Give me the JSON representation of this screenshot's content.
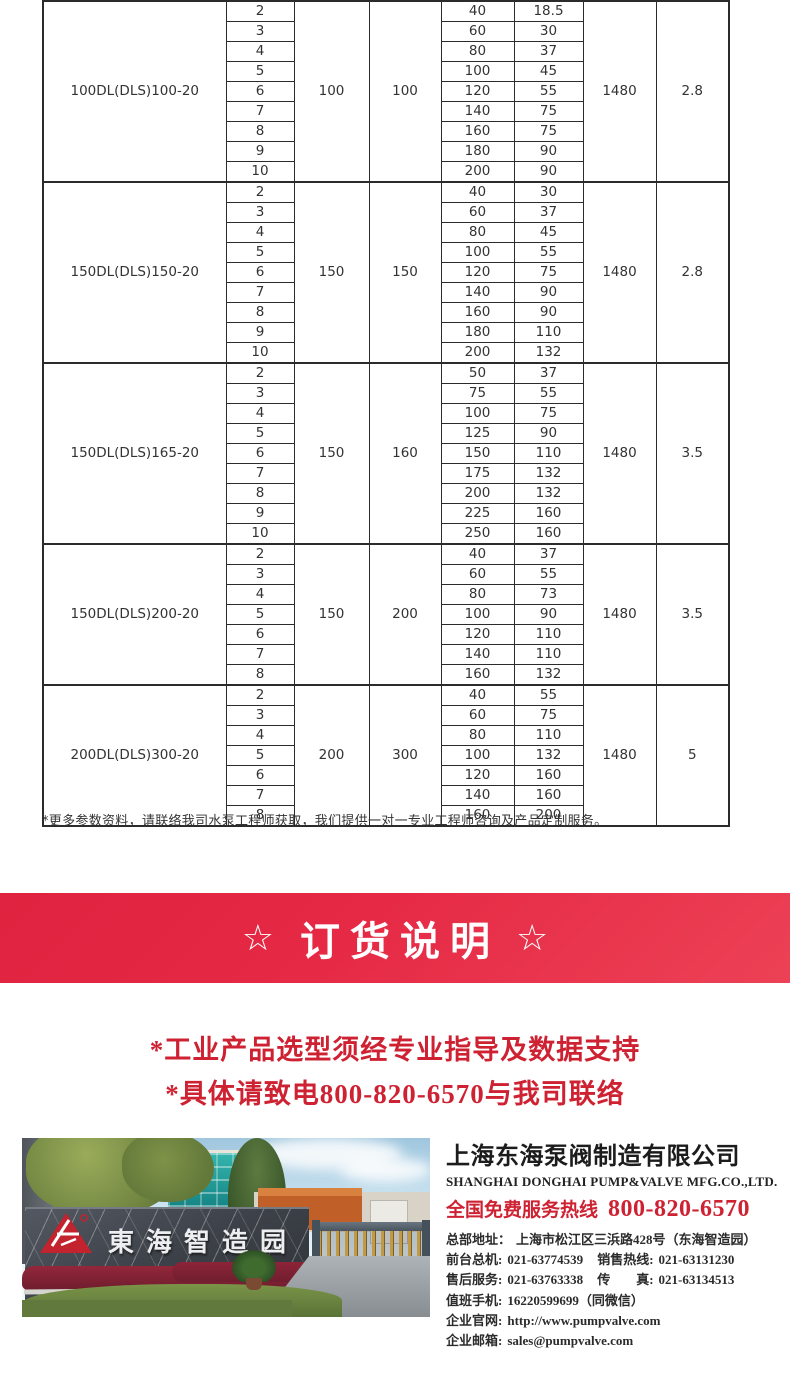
{
  "colors": {
    "banner_red": "#e62a45",
    "text_red": "#ce2233",
    "logo_red": "#c2232e",
    "table_line": "#2b2b2b"
  },
  "table": {
    "groups": [
      {
        "model": "100DL(DLS)100-20",
        "inlet": "100",
        "outlet": "100",
        "speed": "1480",
        "last_col": "2.8",
        "rows": [
          [
            "2",
            "40",
            "18.5"
          ],
          [
            "3",
            "60",
            "30"
          ],
          [
            "4",
            "80",
            "37"
          ],
          [
            "5",
            "100",
            "45"
          ],
          [
            "6",
            "120",
            "55"
          ],
          [
            "7",
            "140",
            "75"
          ],
          [
            "8",
            "160",
            "75"
          ],
          [
            "9",
            "180",
            "90"
          ],
          [
            "10",
            "200",
            "90"
          ]
        ]
      },
      {
        "model": "150DL(DLS)150-20",
        "inlet": "150",
        "outlet": "150",
        "speed": "1480",
        "last_col": "2.8",
        "rows": [
          [
            "2",
            "40",
            "30"
          ],
          [
            "3",
            "60",
            "37"
          ],
          [
            "4",
            "80",
            "45"
          ],
          [
            "5",
            "100",
            "55"
          ],
          [
            "6",
            "120",
            "75"
          ],
          [
            "7",
            "140",
            "90"
          ],
          [
            "8",
            "160",
            "90"
          ],
          [
            "9",
            "180",
            "110"
          ],
          [
            "10",
            "200",
            "132"
          ]
        ]
      },
      {
        "model": "150DL(DLS)165-20",
        "inlet": "150",
        "outlet": "160",
        "speed": "1480",
        "last_col": "3.5",
        "rows": [
          [
            "2",
            "50",
            "37"
          ],
          [
            "3",
            "75",
            "55"
          ],
          [
            "4",
            "100",
            "75"
          ],
          [
            "5",
            "125",
            "90"
          ],
          [
            "6",
            "150",
            "110"
          ],
          [
            "7",
            "175",
            "132"
          ],
          [
            "8",
            "200",
            "132"
          ],
          [
            "9",
            "225",
            "160"
          ],
          [
            "10",
            "250",
            "160"
          ]
        ]
      },
      {
        "model": "150DL(DLS)200-20",
        "inlet": "150",
        "outlet": "200",
        "speed": "1480",
        "last_col": "3.5",
        "rows": [
          [
            "2",
            "40",
            "37"
          ],
          [
            "3",
            "60",
            "55"
          ],
          [
            "4",
            "80",
            "73"
          ],
          [
            "5",
            "100",
            "90"
          ],
          [
            "6",
            "120",
            "110"
          ],
          [
            "7",
            "140",
            "110"
          ],
          [
            "8",
            "160",
            "132"
          ]
        ]
      },
      {
        "model": "200DL(DLS)300-20",
        "inlet": "200",
        "outlet": "300",
        "speed": "1480",
        "last_col": "5",
        "rows": [
          [
            "2",
            "40",
            "55"
          ],
          [
            "3",
            "60",
            "75"
          ],
          [
            "4",
            "80",
            "110"
          ],
          [
            "5",
            "100",
            "132"
          ],
          [
            "6",
            "120",
            "160"
          ],
          [
            "7",
            "140",
            "160"
          ],
          [
            "8",
            "160",
            "200"
          ]
        ]
      }
    ]
  },
  "footnote": "*更多参数资料，请联络我司水泵工程师获取，我们提供一对一专业工程师咨询及产品定制服务。",
  "banner": {
    "star": "☆",
    "title": "订货说明"
  },
  "notice": {
    "line1": "*工业产品选型须经专业指导及数据支持",
    "line2": "*具体请致电800-820-6570与我司联络"
  },
  "photo": {
    "sign_text": "東海智造园"
  },
  "company": {
    "name_cn": "上海东海泵阀制造有限公司",
    "name_en": "SHANGHAI DONGHAI PUMP&VALVE MFG.CO.,LTD.",
    "hotline_label": "全国免费服务热线",
    "hotline_number": "800-820-6570",
    "contact_lines": [
      [
        {
          "label": "总部地址：",
          "value": "上海市松江区三浜路428号（东海智造园）"
        }
      ],
      [
        {
          "label": "前台总机:",
          "value": "021-63774539"
        },
        {
          "label": "销售热线:",
          "value": "021-63131230"
        }
      ],
      [
        {
          "label": "售后服务:",
          "value": "021-63763338"
        },
        {
          "label": "传　　真:",
          "value": "021-63134513"
        }
      ],
      [
        {
          "label": "值班手机:",
          "value": "16220599699（同微信）"
        }
      ],
      [
        {
          "label": "企业官网:",
          "value": "http://www.pumpvalve.com"
        }
      ],
      [
        {
          "label": "企业邮箱:",
          "value": "sales@pumpvalve.com"
        }
      ]
    ]
  }
}
